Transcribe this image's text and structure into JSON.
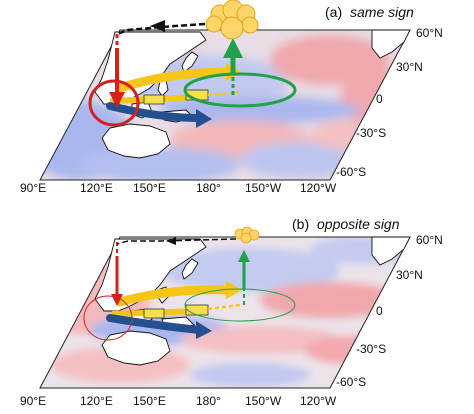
{
  "panels": [
    {
      "id": "a",
      "letter": "(a)",
      "title": "same sign",
      "lat_labels": [
        "60°N",
        "30°N",
        "0",
        "-30°S",
        "-60°S"
      ],
      "lon_labels": [
        "90°E",
        "120°E",
        "150°E",
        "180°",
        "150°W",
        "120°W"
      ]
    },
    {
      "id": "b",
      "letter": "(b)",
      "title": "opposite sign",
      "lat_labels": [
        "60°N",
        "30°N",
        "0",
        "-30°S",
        "-60°S"
      ],
      "lon_labels": [
        "90°E",
        "120°E",
        "150°E",
        "180°",
        "150°W",
        "120°W"
      ]
    }
  ],
  "colors": {
    "warm": "#f2b5b5",
    "cool": "#b9c3ef",
    "neutral": "#eef0f6",
    "red_arrow": "#d42020",
    "green_arrow": "#22a04a",
    "yellow_arrow": "#f5c518",
    "blue_arrow": "#25508f",
    "cloud": "#ffd56a",
    "land": "#ffffff"
  }
}
